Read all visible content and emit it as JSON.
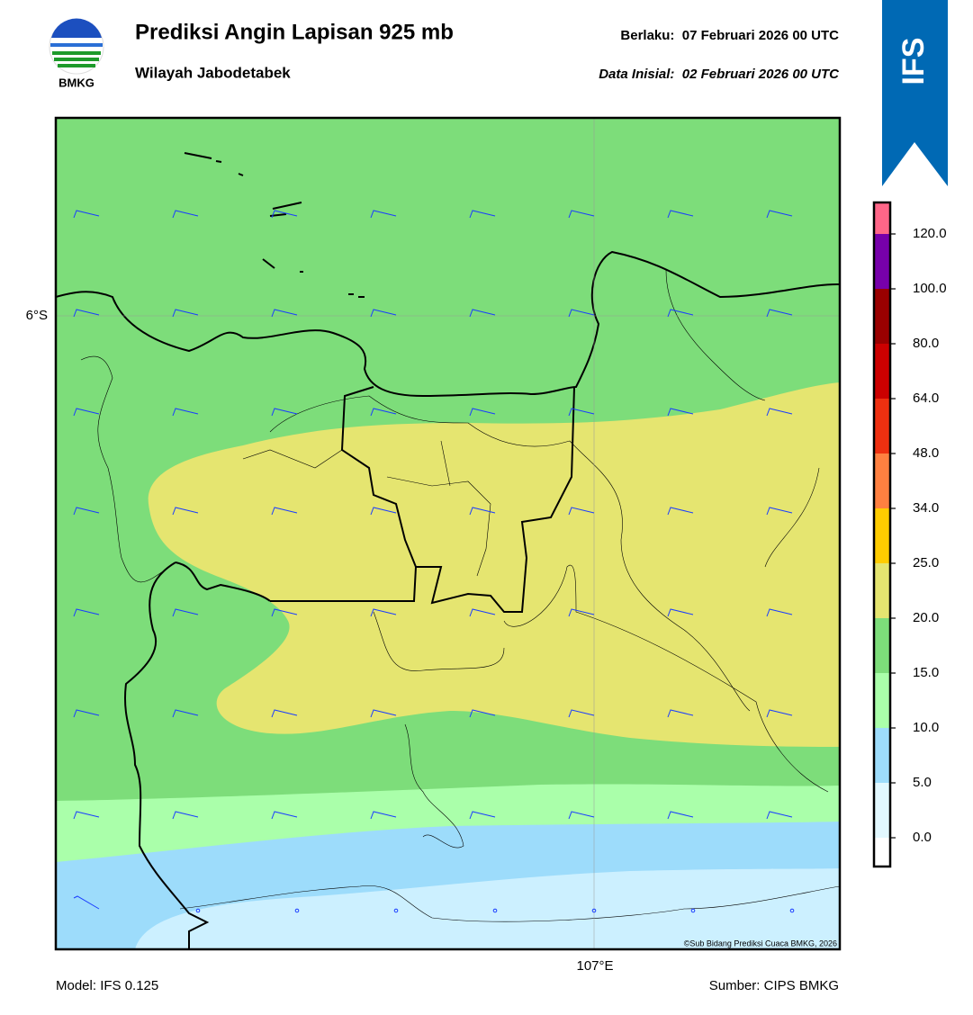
{
  "header": {
    "logo_text": "BMKG",
    "title": "Prediksi Angin Lapisan 925 mb",
    "subtitle": "Wilayah Jabodetabek",
    "valid": "Berlaku:  07 Februari 2026 00 UTC",
    "init": "Data Inisial:  02 Februari 2026 00 UTC",
    "badge": "IFS"
  },
  "map": {
    "lat_label": "6°S",
    "lon_label": "107°E",
    "copyright": "©Sub Bidang Prediksi Cuaca BMKG, 2026"
  },
  "colorbar": {
    "ticks": [
      {
        "value": 0,
        "label": "0.0"
      },
      {
        "value": 5,
        "label": "5.0"
      },
      {
        "value": 10,
        "label": "10.0"
      },
      {
        "value": 15,
        "label": "15.0"
      },
      {
        "value": 20,
        "label": "20.0"
      },
      {
        "value": 25,
        "label": "25.0"
      },
      {
        "value": 34,
        "label": "34.0"
      },
      {
        "value": 48,
        "label": "48.0"
      },
      {
        "value": 64,
        "label": "64.0"
      },
      {
        "value": 80,
        "label": "80.0"
      },
      {
        "value": 100,
        "label": "100.0"
      },
      {
        "value": 120,
        "label": "120.0"
      }
    ],
    "colors": [
      "#ffffff",
      "#e2f8ff",
      "#9ddcfb",
      "#aaffaa",
      "#7ddd7a",
      "#e5e570",
      "#ffcc00",
      "#ff8040",
      "#ee3010",
      "#cc0000",
      "#990000",
      "#7700aa",
      "#ff6688"
    ]
  },
  "footer": {
    "model": "Model: IFS 0.125",
    "source": "Sumber: CIPS BMKG"
  }
}
